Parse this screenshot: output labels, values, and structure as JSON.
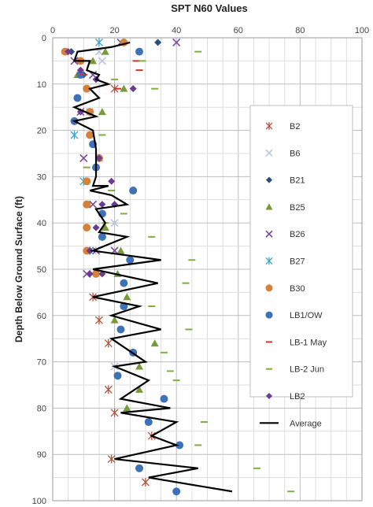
{
  "chart_data": {
    "type": "scatter",
    "title": "SPT N60 Values",
    "xlabel": "",
    "ylabel": "Depth Below Ground Surface (ft)",
    "xlim": [
      0,
      100
    ],
    "ylim": [
      0,
      100
    ],
    "y_inverted": true,
    "x_axis_position": "top",
    "xticks": [
      0,
      20,
      40,
      60,
      80,
      100
    ],
    "yticks": [
      0,
      10,
      20,
      30,
      40,
      50,
      60,
      70,
      80,
      90,
      100
    ],
    "grid": true,
    "legend_position": "right",
    "series": [
      {
        "name": "B2",
        "marker": "star",
        "color": "#b5533c",
        "points": [
          [
            15,
            61
          ],
          [
            20,
            11
          ],
          [
            18,
            66
          ],
          [
            13,
            56
          ],
          [
            18,
            76
          ],
          [
            20,
            81
          ],
          [
            32,
            86
          ],
          [
            19,
            91
          ],
          [
            30,
            96
          ]
        ]
      },
      {
        "name": "B6",
        "marker": "x",
        "color": "#b9c5e0",
        "points": [
          [
            15,
            3
          ],
          [
            16,
            5
          ],
          [
            12,
            16
          ],
          [
            20,
            71
          ],
          [
            13,
            46
          ],
          [
            20,
            40
          ]
        ]
      },
      {
        "name": "B21",
        "marker": "diamond",
        "color": "#2a4d7a",
        "points": [
          [
            34,
            1
          ],
          [
            6,
            3
          ],
          [
            10,
            8
          ],
          [
            12,
            16
          ]
        ]
      },
      {
        "name": "B25",
        "marker": "triangle",
        "color": "#7a9a3a",
        "points": [
          [
            17,
            3
          ],
          [
            13,
            5
          ],
          [
            8,
            8
          ],
          [
            23,
            11
          ],
          [
            16,
            16
          ],
          [
            15,
            26
          ],
          [
            17,
            41
          ],
          [
            22,
            46
          ],
          [
            21,
            51
          ],
          [
            24,
            56
          ],
          [
            20,
            61
          ],
          [
            33,
            66
          ],
          [
            28,
            71
          ],
          [
            28,
            76
          ],
          [
            24,
            80
          ]
        ]
      },
      {
        "name": "B26",
        "marker": "x",
        "color": "#7b4a9a",
        "points": [
          [
            40,
            1
          ],
          [
            7,
            5
          ],
          [
            13,
            8
          ],
          [
            10,
            26
          ],
          [
            13,
            36
          ],
          [
            14,
            46
          ],
          [
            11,
            51
          ],
          [
            20,
            46
          ],
          [
            9,
            16
          ],
          [
            22,
            1
          ]
        ]
      },
      {
        "name": "B27",
        "marker": "star",
        "color": "#3aa3c9",
        "points": [
          [
            15,
            1
          ],
          [
            7,
            21
          ],
          [
            10,
            31
          ],
          [
            12,
            46
          ]
        ]
      },
      {
        "name": "B30",
        "marker": "circle",
        "color": "#d4823a",
        "points": [
          [
            23,
            1
          ],
          [
            4,
            3
          ],
          [
            9,
            5
          ],
          [
            11,
            11
          ],
          [
            12,
            16
          ],
          [
            12,
            21
          ],
          [
            15,
            26
          ],
          [
            11,
            31
          ],
          [
            11,
            36
          ],
          [
            11,
            41
          ],
          [
            11,
            46
          ],
          [
            14,
            51
          ]
        ]
      },
      {
        "name": "LB1/OW",
        "marker": "circle",
        "color": "#3d72b8",
        "points": [
          [
            28,
            3
          ],
          [
            9,
            8
          ],
          [
            8,
            13
          ],
          [
            7,
            18
          ],
          [
            13,
            23
          ],
          [
            14,
            28
          ],
          [
            26,
            33
          ],
          [
            16,
            38
          ],
          [
            16,
            43
          ],
          [
            25,
            48
          ],
          [
            23,
            53
          ],
          [
            23,
            58
          ],
          [
            22,
            63
          ],
          [
            26,
            68
          ],
          [
            21,
            73
          ],
          [
            36,
            78
          ],
          [
            31,
            83
          ],
          [
            41,
            88
          ],
          [
            28,
            93
          ],
          [
            40,
            98
          ]
        ]
      },
      {
        "name": "LB-1 May",
        "marker": "dash",
        "color": "#c0392b",
        "points": [
          [
            27,
            5
          ],
          [
            28,
            7
          ],
          [
            21,
            11
          ],
          [
            10,
            8
          ]
        ]
      },
      {
        "name": "LB-2 Jun",
        "marker": "dash",
        "color": "#7fae3f",
        "points": [
          [
            47,
            3
          ],
          [
            29,
            5
          ],
          [
            20,
            9
          ],
          [
            33,
            11
          ],
          [
            16,
            21
          ],
          [
            11,
            28
          ],
          [
            19,
            33
          ],
          [
            23,
            38
          ],
          [
            17,
            40
          ],
          [
            32,
            43
          ],
          [
            45,
            48
          ],
          [
            43,
            53
          ],
          [
            32,
            58
          ],
          [
            44,
            63
          ],
          [
            36,
            68
          ],
          [
            38,
            72
          ],
          [
            40,
            74
          ],
          [
            49,
            83
          ],
          [
            47,
            88
          ],
          [
            66,
            93
          ],
          [
            77,
            98
          ]
        ]
      },
      {
        "name": "LB2",
        "marker": "diamond",
        "color": "#6c3c92",
        "points": [
          [
            5,
            3
          ],
          [
            9,
            7
          ],
          [
            14,
            9
          ],
          [
            26,
            11
          ],
          [
            9,
            16
          ],
          [
            15,
            26
          ],
          [
            19,
            31
          ],
          [
            16,
            36
          ],
          [
            20,
            36
          ],
          [
            14,
            41
          ],
          [
            12,
            46
          ],
          [
            12,
            51
          ],
          [
            16,
            51
          ]
        ]
      },
      {
        "name": "Average",
        "marker": "line",
        "color": "#000000",
        "points": [
          [
            25,
            1
          ],
          [
            19,
            2
          ],
          [
            8,
            3
          ],
          [
            7,
            5
          ],
          [
            12,
            5
          ],
          [
            11,
            7
          ],
          [
            15,
            8
          ],
          [
            14,
            9
          ],
          [
            18,
            10
          ],
          [
            12,
            11
          ],
          [
            15,
            13
          ],
          [
            7,
            15
          ],
          [
            14,
            17
          ],
          [
            7,
            18
          ],
          [
            13,
            20
          ],
          [
            14,
            24
          ],
          [
            14,
            26
          ],
          [
            14,
            30
          ],
          [
            13,
            32
          ],
          [
            18,
            32
          ],
          [
            12,
            33
          ],
          [
            19,
            34
          ],
          [
            24,
            36
          ],
          [
            14,
            37
          ],
          [
            17,
            40
          ],
          [
            15,
            42
          ],
          [
            24,
            43
          ],
          [
            13,
            46
          ],
          [
            35,
            48
          ],
          [
            13,
            50
          ],
          [
            34,
            53
          ],
          [
            13,
            56
          ],
          [
            28,
            58
          ],
          [
            19,
            60
          ],
          [
            35,
            63
          ],
          [
            19,
            65
          ],
          [
            30,
            70
          ],
          [
            20,
            71
          ],
          [
            31,
            74
          ],
          [
            22,
            78
          ],
          [
            38,
            80
          ],
          [
            22,
            81
          ],
          [
            40,
            83
          ],
          [
            32,
            86
          ],
          [
            40,
            88
          ],
          [
            20,
            91
          ],
          [
            47,
            93
          ],
          [
            31,
            95
          ],
          [
            58,
            98
          ]
        ]
      }
    ]
  }
}
